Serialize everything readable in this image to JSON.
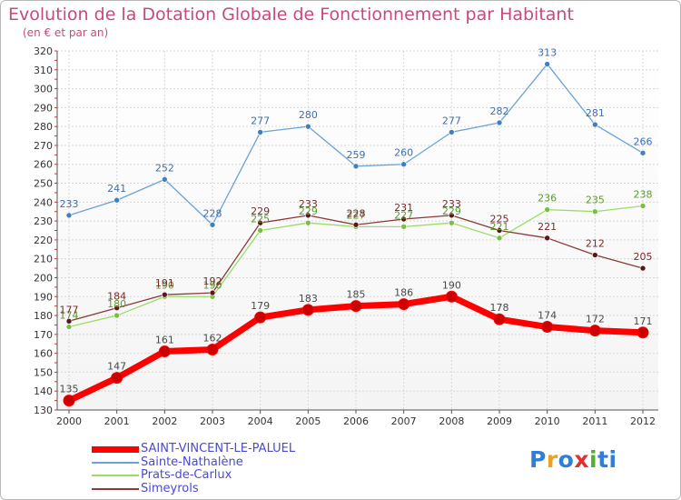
{
  "title": "Evolution de la Dotation Globale de Fonctionnement par Habitant",
  "subtitle": "(en € et par an)",
  "logo": {
    "text": "Proxiti",
    "letters": [
      "P",
      "r",
      "o",
      "x",
      "i",
      "t",
      "i"
    ],
    "colors": [
      "#2f7fd8",
      "#f0a020",
      "#2f7fd8",
      "#e03030",
      "#50b030",
      "#2f7fd8",
      "#2f7fd8"
    ]
  },
  "chart_data": {
    "type": "line",
    "title": "Evolution de la Dotation Globale de Fonctionnement par Habitant",
    "ylabel": "(en € et par an)",
    "xlabel": "",
    "categories": [
      "2000",
      "2001",
      "2002",
      "2003",
      "2004",
      "2005",
      "2006",
      "2007",
      "2008",
      "2009",
      "2010",
      "2011",
      "2012"
    ],
    "ylim": [
      130,
      320
    ],
    "yticks": [
      130,
      140,
      150,
      160,
      170,
      180,
      190,
      200,
      210,
      220,
      230,
      240,
      250,
      260,
      270,
      280,
      290,
      300,
      310,
      320
    ],
    "grid": true,
    "legend_position": "bottom-left",
    "series": [
      {
        "name": "SAINT-VINCENT-LE-PALUEL",
        "color": "#ff0000",
        "marker": "#cc0000",
        "label_color": "#4a4a4a",
        "values": [
          135,
          147,
          161,
          162,
          179,
          183,
          185,
          186,
          190,
          178,
          174,
          172,
          171
        ]
      },
      {
        "name": "Sainte-Nathalène",
        "color": "#6aa3d8",
        "marker": "#3f7fc4",
        "label_color": "#3d6fb0",
        "values": [
          233,
          241,
          252,
          228,
          277,
          280,
          259,
          260,
          277,
          282,
          313,
          281,
          266
        ]
      },
      {
        "name": "Prats-de-Carlux",
        "color": "#99dd66",
        "marker": "#77c044",
        "label_color": "#5c9a30",
        "values": [
          174,
          180,
          190,
          190,
          225,
          229,
          227,
          227,
          229,
          221,
          236,
          235,
          238
        ]
      },
      {
        "name": "Simeyrols",
        "color": "#8a3a3a",
        "marker": "#5a1818",
        "label_color": "#7a2a2a",
        "values": [
          177,
          184,
          191,
          192,
          229,
          233,
          228,
          231,
          233,
          225,
          221,
          212,
          205
        ]
      }
    ]
  }
}
